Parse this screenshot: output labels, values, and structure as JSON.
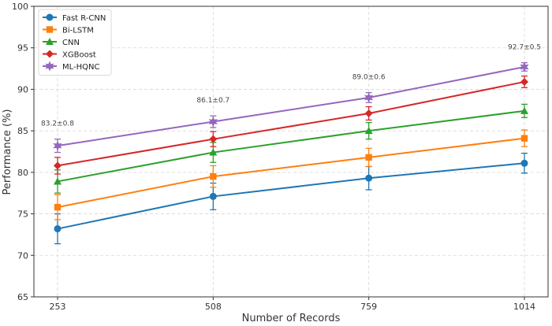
{
  "chart_data": {
    "type": "line",
    "title": "",
    "xlabel": "Number of Records",
    "ylabel": "Performance (%)",
    "x": [
      253,
      508,
      759,
      1014
    ],
    "x_tick_labels": [
      "253",
      "508",
      "759",
      "1014"
    ],
    "ylim": [
      65,
      100
    ],
    "y_ticks": [
      65,
      70,
      75,
      80,
      85,
      90,
      95,
      100
    ],
    "grid": true,
    "legend_position": "top-left",
    "series": [
      {
        "name": "Fast R-CNN",
        "color": "#1f77b4",
        "marker": "circle",
        "values": [
          73.2,
          77.1,
          79.3,
          81.1
        ],
        "errors": [
          1.8,
          1.6,
          1.4,
          1.2
        ]
      },
      {
        "name": "Bi-LSTM",
        "color": "#ff7f0e",
        "marker": "square",
        "values": [
          75.8,
          79.5,
          81.8,
          84.1
        ],
        "errors": [
          1.5,
          1.3,
          1.1,
          1.0
        ]
      },
      {
        "name": "CNN",
        "color": "#2ca02c",
        "marker": "triangle",
        "values": [
          78.9,
          82.4,
          85.0,
          87.4
        ],
        "errors": [
          1.4,
          1.2,
          1.0,
          0.8
        ]
      },
      {
        "name": "XGBoost",
        "color": "#d62728",
        "marker": "diamond",
        "values": [
          80.8,
          84.0,
          87.1,
          90.9
        ],
        "errors": [
          1.0,
          0.9,
          0.8,
          0.7
        ]
      },
      {
        "name": "ML-HQNC",
        "color": "#9467bd",
        "marker": "star",
        "values": [
          83.2,
          86.1,
          89.0,
          92.7
        ],
        "errors": [
          0.8,
          0.7,
          0.6,
          0.5
        ]
      }
    ],
    "annotations": [
      "83.2±0.8",
      "86.1±0.7",
      "89.0±0.6",
      "92.7±0.5"
    ]
  }
}
